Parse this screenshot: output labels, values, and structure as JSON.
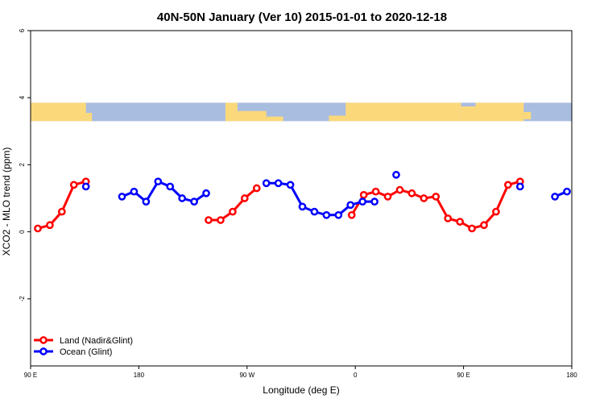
{
  "chart_data": {
    "type": "line",
    "title": "40N-50N January (Ver 10)   2015-01-01 to 2020-12-18",
    "xlabel": "Longitude (deg E)",
    "ylabel": "XCO2 - MLO trend (ppm)",
    "x_unit": "deg E (unwrapped, 90 E to 180 after one full turn)",
    "xlim": [
      90,
      540
    ],
    "ylim": [
      -4,
      6
    ],
    "x_ticks": [
      {
        "value": 90,
        "label": "90 E"
      },
      {
        "value": 180,
        "label": "180"
      },
      {
        "value": 270,
        "label": "90 W"
      },
      {
        "value": 360,
        "label": "0"
      },
      {
        "value": 450,
        "label": "90 E"
      },
      {
        "value": 540,
        "label": "180"
      }
    ],
    "y_ticks": [
      {
        "value": -2,
        "label": "-2"
      },
      {
        "value": 0,
        "label": "0"
      },
      {
        "value": 2,
        "label": "2"
      },
      {
        "value": 4,
        "label": "4"
      },
      {
        "value": 6,
        "label": "6"
      }
    ],
    "grid": false,
    "legend_position": "bottom-left",
    "map_strip": {
      "y_range": [
        3.3,
        3.85
      ],
      "land_color": "#fbd97b",
      "ocean_color": "#a9bde0"
    },
    "series": [
      {
        "name": "Land (Nadir&Glint)",
        "color": "#ff0000",
        "segments": [
          [
            [
              96,
              0.1
            ],
            [
              106,
              0.2
            ],
            [
              116,
              0.6
            ],
            [
              126,
              1.4
            ],
            [
              136,
              1.5
            ]
          ],
          [
            [
              238,
              0.35
            ],
            [
              248,
              0.35
            ],
            [
              258,
              0.6
            ],
            [
              268,
              1.0
            ],
            [
              278,
              1.3
            ]
          ],
          [
            [
              357,
              0.5
            ],
            [
              367,
              1.1
            ],
            [
              377,
              1.2
            ],
            [
              387,
              1.05
            ],
            [
              397,
              1.25
            ],
            [
              407,
              1.15
            ],
            [
              417,
              1.0
            ],
            [
              427,
              1.05
            ],
            [
              437,
              0.4
            ],
            [
              447,
              0.3
            ],
            [
              457,
              0.1
            ],
            [
              467,
              0.2
            ],
            [
              477,
              0.6
            ],
            [
              487,
              1.4
            ],
            [
              497,
              1.5
            ]
          ]
        ]
      },
      {
        "name": "Ocean (Glint)",
        "color": "#0000ff",
        "segments": [
          [
            [
              136,
              1.35
            ]
          ],
          [
            [
              166,
              1.05
            ],
            [
              176,
              1.2
            ],
            [
              186,
              0.9
            ],
            [
              196,
              1.5
            ],
            [
              206,
              1.35
            ],
            [
              216,
              1.0
            ],
            [
              226,
              0.9
            ],
            [
              236,
              1.15
            ]
          ],
          [
            [
              286,
              1.45
            ],
            [
              296,
              1.45
            ],
            [
              306,
              1.4
            ],
            [
              316,
              0.75
            ],
            [
              326,
              0.6
            ],
            [
              336,
              0.5
            ],
            [
              346,
              0.5
            ],
            [
              356,
              0.8
            ],
            [
              366,
              0.9
            ],
            [
              376,
              0.9
            ]
          ],
          [
            [
              394,
              1.7
            ]
          ],
          [
            [
              497,
              1.35
            ]
          ],
          [
            [
              526,
              1.05
            ],
            [
              536,
              1.2
            ]
          ]
        ]
      }
    ]
  }
}
